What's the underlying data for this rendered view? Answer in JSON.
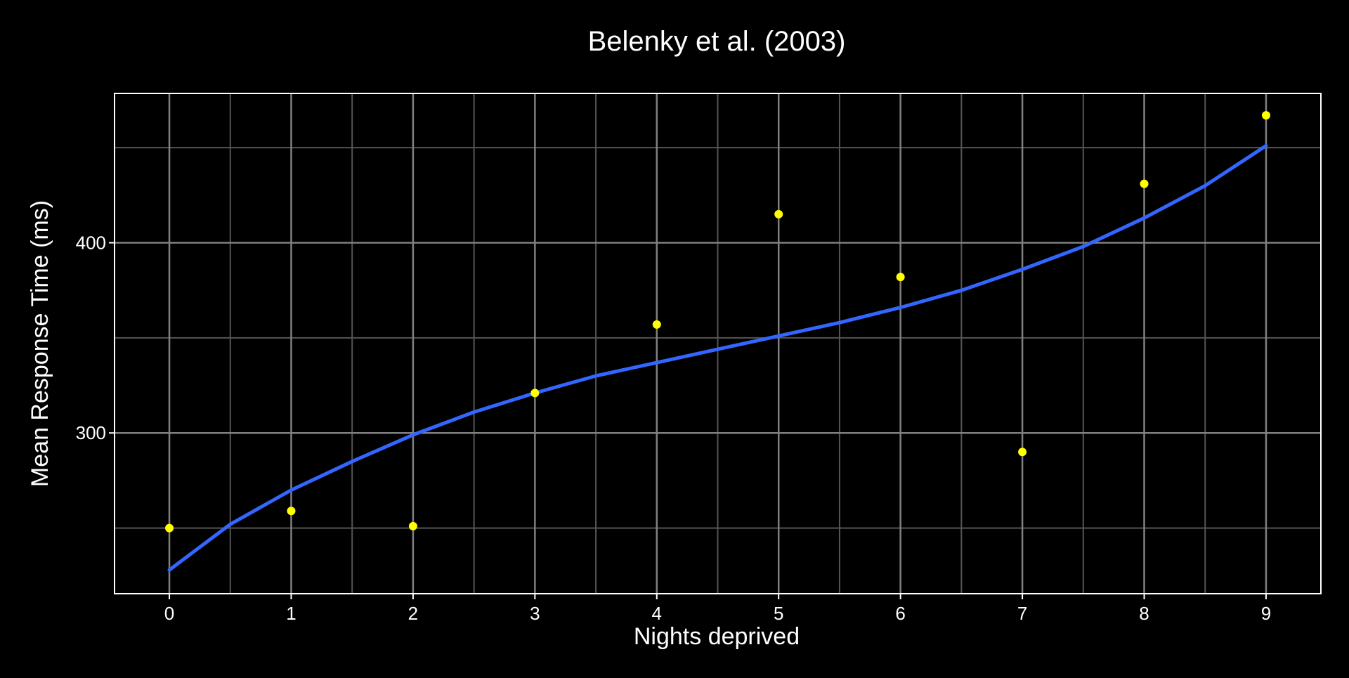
{
  "chart_data": {
    "type": "scatter",
    "title": "Belenky et al. (2003)",
    "xlabel": "Nights deprived",
    "ylabel": "Mean Response Time (ms)",
    "xlim": [
      -0.45,
      9.45
    ],
    "ylim": [
      215.5,
      478.5
    ],
    "x_ticks": [
      0,
      1,
      2,
      3,
      4,
      5,
      6,
      7,
      8,
      9
    ],
    "y_ticks": [
      300,
      400
    ],
    "grid": true,
    "colors": {
      "background": "#000000",
      "panel_border": "#ffffff",
      "grid_major": "#808080",
      "grid_minor": "#555555",
      "text": "#ffffff",
      "points": "#ffff00",
      "fit_line": "#3366ff"
    },
    "series": [
      {
        "type": "scatter",
        "x": [
          0,
          1,
          2,
          3,
          4,
          5,
          6,
          7,
          8,
          9
        ],
        "y": [
          250,
          259,
          251,
          321,
          357,
          415,
          382,
          290,
          431,
          467
        ]
      },
      {
        "type": "line",
        "x": [
          0,
          0.5,
          1,
          1.5,
          2,
          2.5,
          3,
          3.5,
          4,
          4.5,
          5,
          5.5,
          6,
          6.5,
          7,
          7.5,
          8,
          8.5,
          9
        ],
        "y": [
          228,
          252,
          270,
          285,
          299,
          311,
          321,
          330,
          337,
          344,
          351,
          358,
          366,
          375,
          386,
          398,
          413,
          430,
          451
        ]
      }
    ]
  }
}
